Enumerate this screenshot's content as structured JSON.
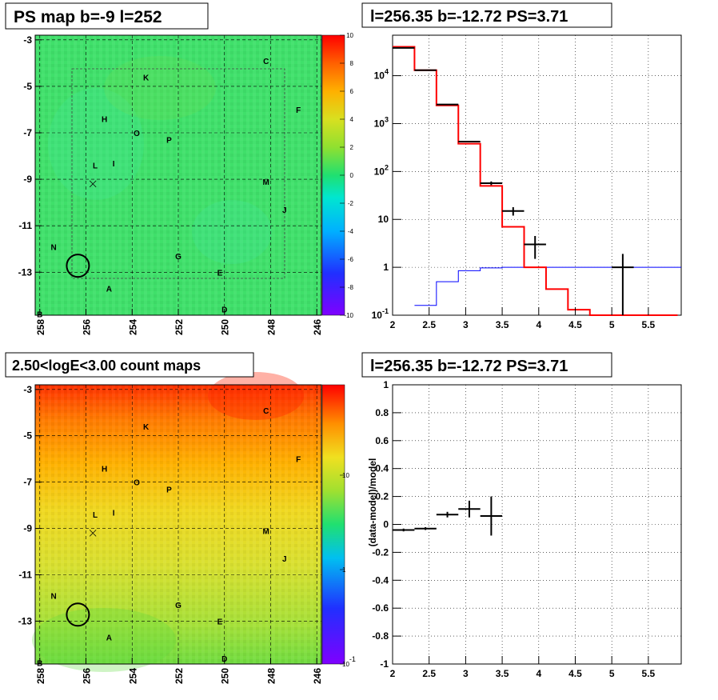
{
  "chart_data": [
    {
      "id": "ps_map",
      "type": "heatmap",
      "title": "PS map b=-9 l=252",
      "x_ticks": [
        "258",
        "256",
        "254",
        "252",
        "250",
        "248",
        "246"
      ],
      "y_ticks": [
        "-3",
        "-5",
        "-7",
        "-9",
        "-11",
        "-13"
      ],
      "colorbar_ticks": [
        "10",
        "8",
        "6",
        "4",
        "2",
        "0",
        "-2",
        "-4",
        "-6",
        "-8",
        "-10"
      ],
      "source_labels": [
        {
          "name": "C",
          "l": 248.2,
          "b": -3.9
        },
        {
          "name": "K",
          "l": 253.4,
          "b": -4.6
        },
        {
          "name": "F",
          "l": 246.8,
          "b": -6.0
        },
        {
          "name": "H",
          "l": 255.2,
          "b": -6.4
        },
        {
          "name": "O",
          "l": 253.8,
          "b": -7.0
        },
        {
          "name": "P",
          "l": 252.4,
          "b": -7.3
        },
        {
          "name": "L",
          "l": 255.6,
          "b": -8.4
        },
        {
          "name": "I",
          "l": 254.8,
          "b": -8.3
        },
        {
          "name": "M",
          "l": 248.2,
          "b": -9.1
        },
        {
          "name": "J",
          "l": 247.4,
          "b": -10.3
        },
        {
          "name": "N",
          "l": 257.4,
          "b": -11.9
        },
        {
          "name": "G",
          "l": 252.0,
          "b": -12.3
        },
        {
          "name": "A",
          "l": 255.0,
          "b": -13.7
        },
        {
          "name": "E",
          "l": 250.2,
          "b": -13.0
        },
        {
          "name": "D",
          "l": 250.0,
          "b": -14.6
        },
        {
          "name": "B",
          "l": 258.0,
          "b": -14.8
        }
      ],
      "circle": {
        "l": 256.35,
        "b": -12.72
      },
      "cross": {
        "l": 255.7,
        "b": -9.2
      }
    },
    {
      "id": "spectrum",
      "type": "line",
      "title": "l=256.35 b=-12.72 PS=3.71",
      "x_ticks": [
        "2",
        "2.5",
        "3",
        "3.5",
        "4",
        "4.5",
        "5",
        "5.5"
      ],
      "y_ticks": [
        "10^4",
        "10^3",
        "10^2",
        "10",
        "1",
        "10^-1"
      ],
      "xlim": [
        2,
        5.95
      ],
      "ylim": [
        0.1,
        70000
      ],
      "log_y": true,
      "grid": true,
      "series": [
        {
          "kind": "data",
          "color": "#000000",
          "points": [
            {
              "x": 2.15,
              "y": 38000,
              "xerr": 0.15,
              "yerr": 0
            },
            {
              "x": 2.45,
              "y": 13000,
              "xerr": 0.15,
              "yerr": 0
            },
            {
              "x": 2.75,
              "y": 2500,
              "xerr": 0.15,
              "yerr": 0
            },
            {
              "x": 3.05,
              "y": 420,
              "xerr": 0.15,
              "yerr": 0
            },
            {
              "x": 3.35,
              "y": 57,
              "xerr": 0.15,
              "yerr": 5
            },
            {
              "x": 3.65,
              "y": 15,
              "xerr": 0.15,
              "yerr": 3
            },
            {
              "x": 3.95,
              "y": 3,
              "xerr": 0.15,
              "yerr": 1.5
            },
            {
              "x": 5.15,
              "y": 1,
              "xerr": 0.15,
              "yerr": 0.9
            }
          ]
        },
        {
          "kind": "total-model",
          "color": "#ff0000",
          "edges": [
            2.0,
            2.3,
            2.6,
            2.9,
            3.2,
            3.5,
            3.8,
            4.1,
            4.4,
            4.7,
            5.0,
            5.3,
            5.6,
            5.9
          ],
          "values": [
            40000,
            13000,
            2400,
            380,
            50,
            7,
            1.0,
            0.35,
            0.13,
            0.1,
            0.1,
            0.1,
            0.1
          ]
        },
        {
          "kind": "ps-model",
          "color": "#0000ff",
          "edges": [
            2.3,
            2.6,
            2.9,
            3.2,
            3.5,
            3.8,
            4.1,
            4.4,
            4.7,
            5.0,
            5.3,
            5.6,
            5.95
          ],
          "values": [
            0.16,
            0.5,
            0.85,
            0.97,
            1.0,
            1.0,
            1.0,
            1.0,
            1.0,
            1.0,
            1.0,
            1.0
          ]
        }
      ]
    },
    {
      "id": "count_map",
      "type": "heatmap",
      "title": "2.50<logE<3.00 count maps",
      "x_ticks": [
        "258",
        "256",
        "254",
        "252",
        "250",
        "248",
        "246"
      ],
      "y_ticks": [
        "-3",
        "-5",
        "-7",
        "-9",
        "-11",
        "-13"
      ],
      "colorbar_ticks": [
        "10",
        "1",
        "10^-1"
      ],
      "source_labels": "same as ps_map"
    },
    {
      "id": "residuals",
      "type": "scatter",
      "title": "l=256.35 b=-12.72 PS=3.71",
      "ylabel": "(data-model)/model",
      "x_ticks": [
        "2",
        "2.5",
        "3",
        "3.5",
        "4",
        "4.5",
        "5",
        "5.5"
      ],
      "y_ticks": [
        "1",
        "0.8",
        "0.6",
        "0.4",
        "0.2",
        "0",
        "-0.2",
        "-0.4",
        "-0.6",
        "-0.8",
        "-1"
      ],
      "xlim": [
        2,
        5.95
      ],
      "ylim": [
        -1,
        1
      ],
      "grid": true,
      "points": [
        {
          "x": 2.15,
          "y": -0.04,
          "xerr": 0.15,
          "yerr": 0.01
        },
        {
          "x": 2.45,
          "y": -0.03,
          "xerr": 0.15,
          "yerr": 0.01
        },
        {
          "x": 2.75,
          "y": 0.07,
          "xerr": 0.15,
          "yerr": 0.02
        },
        {
          "x": 3.05,
          "y": 0.11,
          "xerr": 0.15,
          "yerr": 0.06
        },
        {
          "x": 3.35,
          "y": 0.06,
          "xerr": 0.15,
          "yerr": 0.14
        }
      ]
    }
  ]
}
